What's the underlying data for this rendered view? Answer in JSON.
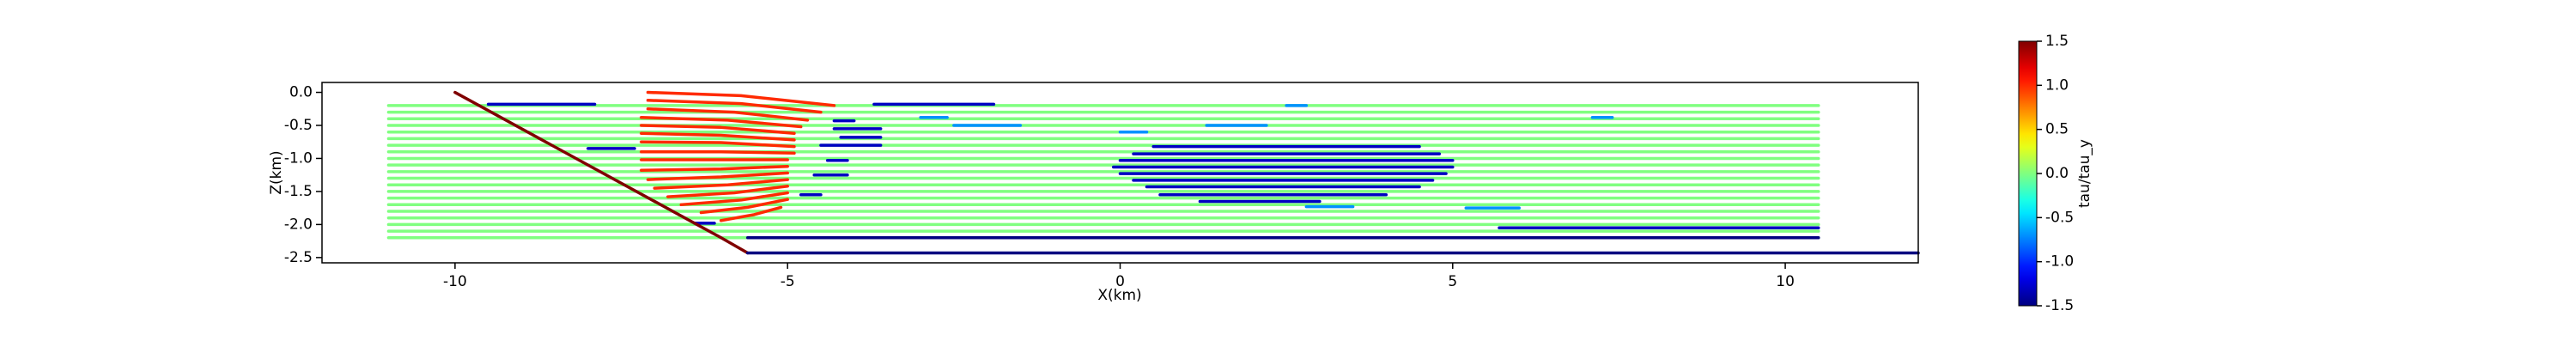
{
  "chart_data": {
    "type": "streaks",
    "xlabel": "X(km)",
    "ylabel": "Z(km)",
    "colorbar_label": "tau/tau_y",
    "cmap": "jet",
    "clim": [
      -1.5,
      1.5
    ],
    "cticks": [
      -1.5,
      {
        "value": -1,
        "label": "-1.0"
      },
      -0.5,
      {
        "value": 0,
        "label": "0.0"
      },
      0.5,
      {
        "value": 1,
        "label": "1.0"
      },
      1.5
    ],
    "xlim": [
      -12,
      12
    ],
    "ylim": [
      -2.58,
      0.15
    ],
    "xticks": [
      -10,
      -5,
      0,
      5,
      10
    ],
    "yticks": [
      {
        "value": 0,
        "label": "0.0"
      },
      -0.5,
      {
        "value": -1,
        "label": "-1.0"
      },
      -1.5,
      {
        "value": -2,
        "label": "-2.0"
      },
      -2.5
    ],
    "streaks": [
      {
        "x": [
          -11,
          10.5
        ],
        "z": [
          -0.2,
          -0.2
        ],
        "value": 0
      },
      {
        "x": [
          -11,
          10.5
        ],
        "z": [
          -0.3,
          -0.3
        ],
        "value": 0
      },
      {
        "x": [
          -11,
          10.5
        ],
        "z": [
          -0.4,
          -0.4
        ],
        "value": 0
      },
      {
        "x": [
          -11,
          10.5
        ],
        "z": [
          -0.5,
          -0.5
        ],
        "value": 0
      },
      {
        "x": [
          -11,
          10.5
        ],
        "z": [
          -0.6,
          -0.6
        ],
        "value": 0
      },
      {
        "x": [
          -11,
          10.5
        ],
        "z": [
          -0.7,
          -0.7
        ],
        "value": 0
      },
      {
        "x": [
          -11,
          10.5
        ],
        "z": [
          -0.8,
          -0.8
        ],
        "value": 0
      },
      {
        "x": [
          -11,
          10.5
        ],
        "z": [
          -0.9,
          -0.9
        ],
        "value": 0
      },
      {
        "x": [
          -11,
          10.5
        ],
        "z": [
          -1.0,
          -1.0
        ],
        "value": 0
      },
      {
        "x": [
          -11,
          10.5
        ],
        "z": [
          -1.1,
          -1.1
        ],
        "value": 0
      },
      {
        "x": [
          -11,
          10.5
        ],
        "z": [
          -1.2,
          -1.2
        ],
        "value": 0
      },
      {
        "x": [
          -11,
          10.5
        ],
        "z": [
          -1.3,
          -1.3
        ],
        "value": 0
      },
      {
        "x": [
          -11,
          10.5
        ],
        "z": [
          -1.4,
          -1.4
        ],
        "value": 0
      },
      {
        "x": [
          -11,
          10.5
        ],
        "z": [
          -1.5,
          -1.5
        ],
        "value": 0
      },
      {
        "x": [
          -11,
          10.5
        ],
        "z": [
          -1.6,
          -1.6
        ],
        "value": 0
      },
      {
        "x": [
          -11,
          10.5
        ],
        "z": [
          -1.7,
          -1.7
        ],
        "value": 0
      },
      {
        "x": [
          -11,
          10.5
        ],
        "z": [
          -1.8,
          -1.8
        ],
        "value": 0
      },
      {
        "x": [
          -11,
          10.5
        ],
        "z": [
          -1.9,
          -1.9
        ],
        "value": 0
      },
      {
        "x": [
          -11,
          10.5
        ],
        "z": [
          -2.0,
          -2.0
        ],
        "value": 0
      },
      {
        "x": [
          -11,
          10.5
        ],
        "z": [
          -2.1,
          -2.1
        ],
        "value": 0
      },
      {
        "x": [
          -11,
          10.5
        ],
        "z": [
          -2.2,
          -2.2
        ],
        "value": 0
      },
      {
        "x": [
          -2.5,
          -1.5
        ],
        "z": [
          -0.5,
          -0.5
        ],
        "value": -0.7
      },
      {
        "x": [
          -3.0,
          -2.6
        ],
        "z": [
          -0.38,
          -0.38
        ],
        "value": -0.7
      },
      {
        "x": [
          1.3,
          2.2
        ],
        "z": [
          -0.5,
          -0.5
        ],
        "value": -0.7
      },
      {
        "x": [
          0,
          0.4
        ],
        "z": [
          -0.6,
          -0.6
        ],
        "value": -0.7
      },
      {
        "x": [
          2.8,
          3.5
        ],
        "z": [
          -1.73,
          -1.73
        ],
        "value": -0.7
      },
      {
        "x": [
          5.2,
          6.0
        ],
        "z": [
          -1.75,
          -1.75
        ],
        "value": -0.7
      },
      {
        "x": [
          2.5,
          2.8
        ],
        "z": [
          -0.2,
          -0.2
        ],
        "value": -0.7
      },
      {
        "x": [
          7.1,
          7.4
        ],
        "z": [
          -0.38,
          -0.38
        ],
        "value": -0.7
      },
      {
        "x": [
          -7.1,
          -5.7,
          -4.3
        ],
        "z": [
          0,
          -0.05,
          -0.2
        ],
        "value": 1
      },
      {
        "x": [
          -7.1,
          -5.7,
          -4.5
        ],
        "z": [
          -0.12,
          -0.17,
          -0.3
        ],
        "value": 1
      },
      {
        "x": [
          -7.1,
          -5.8,
          -4.7
        ],
        "z": [
          -0.25,
          -0.3,
          -0.42
        ],
        "value": 1
      },
      {
        "x": [
          -7.2,
          -5.9,
          -4.8
        ],
        "z": [
          -0.38,
          -0.42,
          -0.52
        ],
        "value": 1
      },
      {
        "x": [
          -7.2,
          -6.0,
          -4.9
        ],
        "z": [
          -0.5,
          -0.53,
          -0.62
        ],
        "value": 1
      },
      {
        "x": [
          -7.2,
          -6.0,
          -4.9
        ],
        "z": [
          -0.62,
          -0.65,
          -0.72
        ],
        "value": 1
      },
      {
        "x": [
          -7.2,
          -6.0,
          -4.9
        ],
        "z": [
          -0.75,
          -0.76,
          -0.82
        ],
        "value": 1
      },
      {
        "x": [
          -7.2,
          -6.0,
          -4.9
        ],
        "z": [
          -0.9,
          -0.9,
          -0.92
        ],
        "value": 1
      },
      {
        "x": [
          -7.2,
          -6.0,
          -5.0
        ],
        "z": [
          -1.02,
          -1.02,
          -1.02
        ],
        "value": 1
      },
      {
        "x": [
          -7.2,
          -6.0,
          -5.0
        ],
        "z": [
          -1.18,
          -1.16,
          -1.12
        ],
        "value": 1
      },
      {
        "x": [
          -7.1,
          -6.0,
          -5.0
        ],
        "z": [
          -1.32,
          -1.28,
          -1.22
        ],
        "value": 1
      },
      {
        "x": [
          -7.0,
          -5.9,
          -5.0
        ],
        "z": [
          -1.45,
          -1.4,
          -1.32
        ],
        "value": 1
      },
      {
        "x": [
          -6.8,
          -5.8,
          -5.0
        ],
        "z": [
          -1.58,
          -1.52,
          -1.42
        ],
        "value": 1
      },
      {
        "x": [
          -6.6,
          -5.7,
          -5.0
        ],
        "z": [
          -1.7,
          -1.63,
          -1.52
        ],
        "value": 1
      },
      {
        "x": [
          -6.3,
          -5.6,
          -5.0
        ],
        "z": [
          -1.82,
          -1.74,
          -1.62
        ],
        "value": 1
      },
      {
        "x": [
          -6.0,
          -5.5,
          -5.1
        ],
        "z": [
          -1.94,
          -1.85,
          -1.74
        ],
        "value": 1
      },
      {
        "x": [
          -9.5,
          -7.9
        ],
        "z": [
          -0.18,
          -0.18
        ],
        "value": -1.3
      },
      {
        "x": [
          -3.7,
          -1.9
        ],
        "z": [
          -0.18,
          -0.18
        ],
        "value": -1.3
      },
      {
        "x": [
          -4.3,
          -4.0
        ],
        "z": [
          -0.43,
          -0.43
        ],
        "value": -1.3
      },
      {
        "x": [
          -4.3,
          -3.6
        ],
        "z": [
          -0.55,
          -0.55
        ],
        "value": -1.3
      },
      {
        "x": [
          -4.2,
          -3.6
        ],
        "z": [
          -0.68,
          -0.68
        ],
        "value": -1.3
      },
      {
        "x": [
          -4.5,
          -3.6
        ],
        "z": [
          -0.8,
          -0.8
        ],
        "value": -1.3
      },
      {
        "x": [
          -8.0,
          -7.3
        ],
        "z": [
          -0.85,
          -0.85
        ],
        "value": -1.3
      },
      {
        "x": [
          -4.4,
          -4.1
        ],
        "z": [
          -1.03,
          -1.03
        ],
        "value": -1.3
      },
      {
        "x": [
          -4.6,
          -4.1
        ],
        "z": [
          -1.25,
          -1.25
        ],
        "value": -1.3
      },
      {
        "x": [
          -4.8,
          -4.5
        ],
        "z": [
          -1.55,
          -1.55
        ],
        "value": -1.3
      },
      {
        "x": [
          -6.4,
          -6.1
        ],
        "z": [
          -1.98,
          -1.98
        ],
        "value": -1.3
      },
      {
        "x": [
          0.5,
          4.5
        ],
        "z": [
          -0.82,
          -0.82
        ],
        "value": -1.3
      },
      {
        "x": [
          0.2,
          4.8
        ],
        "z": [
          -0.93,
          -0.93
        ],
        "value": -1.3
      },
      {
        "x": [
          0,
          5.0
        ],
        "z": [
          -1.03,
          -1.03
        ],
        "value": -1.3
      },
      {
        "x": [
          -0.1,
          5.0
        ],
        "z": [
          -1.13,
          -1.13
        ],
        "value": -1.3
      },
      {
        "x": [
          0,
          4.9
        ],
        "z": [
          -1.23,
          -1.23
        ],
        "value": -1.3
      },
      {
        "x": [
          0.2,
          4.7
        ],
        "z": [
          -1.33,
          -1.33
        ],
        "value": -1.3
      },
      {
        "x": [
          0.4,
          4.5
        ],
        "z": [
          -1.43,
          -1.43
        ],
        "value": -1.3
      },
      {
        "x": [
          0.6,
          4.0
        ],
        "z": [
          -1.55,
          -1.55
        ],
        "value": -1.3
      },
      {
        "x": [
          1.2,
          3.0
        ],
        "z": [
          -1.65,
          -1.65
        ],
        "value": -1.3
      },
      {
        "x": [
          5.7,
          10.5
        ],
        "z": [
          -2.05,
          -2.05
        ],
        "value": -1.3
      },
      {
        "x": [
          -5.6,
          10.5
        ],
        "z": [
          -2.2,
          -2.2
        ],
        "value": -1.5
      },
      {
        "x": [
          -10,
          -6.0,
          -5.6
        ],
        "z": [
          0,
          -2.2,
          -2.43
        ],
        "value": 1.5
      },
      {
        "x": [
          -5.6,
          12
        ],
        "z": [
          -2.43,
          -2.43
        ],
        "value": -1.5
      }
    ]
  }
}
